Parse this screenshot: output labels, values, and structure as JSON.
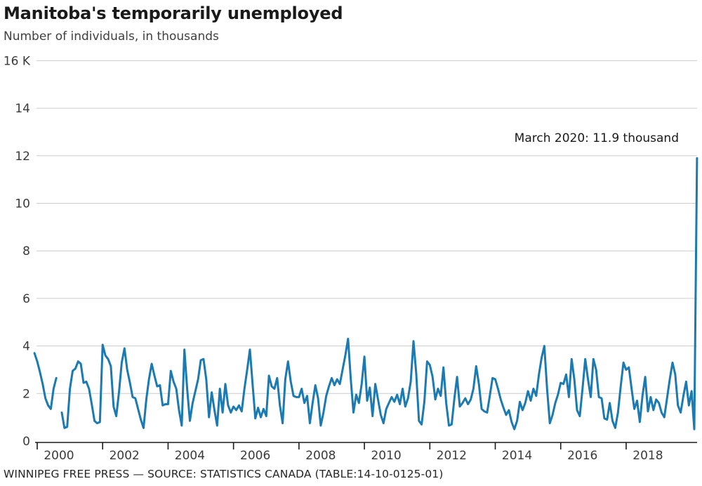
{
  "header": {
    "title": "Manitoba's temporarily unemployed",
    "subtitle": "Number of individuals, in thousands"
  },
  "footer": {
    "text": "WINNIPEG FREE PRESS — SOURCE: STATISTICS CANADA (TABLE:14-10-0125-01)"
  },
  "colors": {
    "line": "#1a7ab1",
    "grid": "#cccccc",
    "axis": "#1a1a1a",
    "tick_text": "#3a3a3a"
  },
  "chart_data": {
    "type": "line",
    "title": "Manitoba's temporarily unemployed",
    "subtitle": "Number of individuals, in thousands",
    "annotation": "March 2020: 11.9 thousand",
    "unit": "thousands of individuals",
    "frequency": "monthly",
    "start_month": "1999-12",
    "end_month": "2020-03",
    "ylim": [
      0,
      16
    ],
    "y_tick_labels": [
      "0",
      "2",
      "4",
      "6",
      "8",
      "10",
      "12",
      "14",
      "16 K"
    ],
    "y_tick_values": [
      0,
      2,
      4,
      6,
      8,
      10,
      12,
      14,
      16
    ],
    "x_tick_years": [
      "2000",
      "2002",
      "2004",
      "2006",
      "2008",
      "2010",
      "2012",
      "2014",
      "2016",
      "2018"
    ],
    "grid": "horizontal",
    "legend": "none",
    "line_color": "#1a7ab1",
    "highlight": {
      "month": "2020-03",
      "value": 11.9
    },
    "data_gap_note": "one missing month in late 2000 (line break)",
    "values": [
      3.7,
      3.35,
      2.9,
      2.4,
      1.8,
      1.5,
      1.35,
      2.2,
      2.65,
      null,
      1.2,
      0.55,
      0.6,
      2.2,
      2.95,
      3.05,
      3.35,
      3.25,
      2.45,
      2.5,
      2.2,
      1.55,
      0.85,
      0.75,
      0.8,
      4.05,
      3.6,
      3.45,
      3.15,
      1.45,
      1.05,
      2.05,
      3.3,
      3.9,
      3.0,
      2.45,
      1.85,
      1.8,
      1.35,
      0.9,
      0.55,
      1.75,
      2.6,
      3.25,
      2.75,
      2.3,
      2.35,
      1.5,
      1.55,
      1.55,
      2.95,
      2.5,
      2.2,
      1.3,
      0.65,
      3.85,
      2.2,
      0.85,
      1.6,
      2.1,
      2.6,
      3.4,
      3.45,
      2.6,
      1.0,
      2.05,
      1.3,
      0.65,
      2.2,
      1.2,
      2.4,
      1.5,
      1.2,
      1.45,
      1.3,
      1.5,
      1.25,
      2.2,
      3.0,
      3.85,
      2.4,
      0.95,
      1.4,
      1.0,
      1.35,
      1.05,
      2.75,
      2.3,
      2.2,
      2.65,
      1.5,
      0.75,
      2.6,
      3.35,
      2.5,
      1.9,
      1.85,
      1.85,
      2.2,
      1.6,
      1.9,
      0.75,
      1.6,
      2.35,
      1.8,
      0.65,
      1.2,
      1.9,
      2.3,
      2.65,
      2.35,
      2.6,
      2.4,
      3.0,
      3.6,
      4.3,
      2.6,
      1.2,
      1.95,
      1.6,
      2.4,
      3.55,
      1.7,
      2.25,
      1.05,
      2.4,
      1.75,
      1.1,
      0.75,
      1.35,
      1.6,
      1.85,
      1.65,
      1.95,
      1.55,
      2.2,
      1.45,
      1.8,
      2.5,
      4.2,
      2.85,
      0.85,
      0.7,
      1.65,
      3.35,
      3.2,
      2.7,
      1.75,
      2.2,
      1.9,
      3.1,
      1.6,
      0.65,
      0.7,
      1.8,
      2.7,
      1.45,
      1.6,
      1.8,
      1.55,
      1.75,
      2.2,
      3.15,
      2.4,
      1.35,
      1.25,
      1.2,
      1.9,
      2.65,
      2.6,
      2.2,
      1.75,
      1.4,
      1.1,
      1.3,
      0.8,
      0.5,
      0.85,
      1.65,
      1.3,
      1.6,
      2.1,
      1.7,
      2.2,
      1.9,
      2.8,
      3.5,
      4.0,
      2.2,
      0.75,
      1.1,
      1.6,
      1.95,
      2.45,
      2.4,
      2.8,
      1.85,
      3.45,
      2.6,
      1.3,
      1.05,
      2.2,
      3.45,
      2.6,
      1.85,
      3.45,
      3.0,
      1.85,
      1.8,
      0.95,
      0.9,
      1.6,
      0.85,
      0.55,
      1.2,
      2.3,
      3.3,
      3.0,
      3.1,
      2.2,
      1.35,
      1.7,
      0.8,
      1.9,
      2.7,
      1.25,
      1.85,
      1.3,
      1.75,
      1.6,
      1.2,
      1.0,
      1.8,
      2.6,
      3.3,
      2.8,
      1.5,
      1.2,
      1.9,
      2.5,
      1.5,
      2.1,
      0.5,
      11.9
    ]
  }
}
